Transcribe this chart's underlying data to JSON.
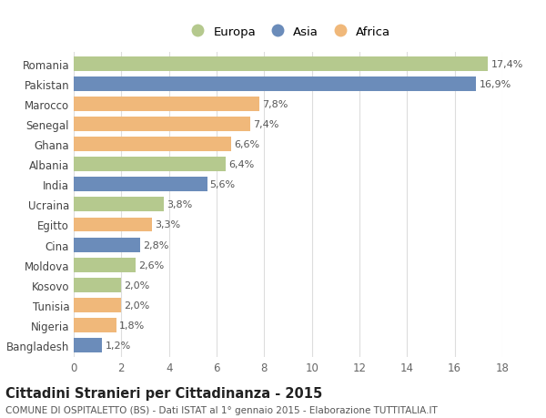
{
  "categories": [
    "Romania",
    "Pakistan",
    "Marocco",
    "Senegal",
    "Ghana",
    "Albania",
    "India",
    "Ucraina",
    "Egitto",
    "Cina",
    "Moldova",
    "Kosovo",
    "Tunisia",
    "Nigeria",
    "Bangladesh"
  ],
  "values": [
    17.4,
    16.9,
    7.8,
    7.4,
    6.6,
    6.4,
    5.6,
    3.8,
    3.3,
    2.8,
    2.6,
    2.0,
    2.0,
    1.8,
    1.2
  ],
  "labels": [
    "17,4%",
    "16,9%",
    "7,8%",
    "7,4%",
    "6,6%",
    "6,4%",
    "5,6%",
    "3,8%",
    "3,3%",
    "2,8%",
    "2,6%",
    "2,0%",
    "2,0%",
    "1,8%",
    "1,2%"
  ],
  "continents": [
    "Europa",
    "Asia",
    "Africa",
    "Africa",
    "Africa",
    "Europa",
    "Asia",
    "Europa",
    "Africa",
    "Asia",
    "Europa",
    "Europa",
    "Africa",
    "Africa",
    "Asia"
  ],
  "colors": {
    "Europa": "#b5c98e",
    "Asia": "#6b8cba",
    "Africa": "#f0b87a"
  },
  "xlim": [
    0,
    18
  ],
  "xticks": [
    0,
    2,
    4,
    6,
    8,
    10,
    12,
    14,
    16,
    18
  ],
  "title": "Cittadini Stranieri per Cittadinanza - 2015",
  "subtitle": "COMUNE DI OSPITALETTO (BS) - Dati ISTAT al 1° gennaio 2015 - Elaborazione TUTTITALIA.IT",
  "bg_color": "#ffffff",
  "grid_color": "#dddddd",
  "bar_height": 0.72,
  "label_fontsize": 8.0,
  "ytick_fontsize": 8.5,
  "xtick_fontsize": 8.5,
  "title_fontsize": 10.5,
  "subtitle_fontsize": 7.5
}
